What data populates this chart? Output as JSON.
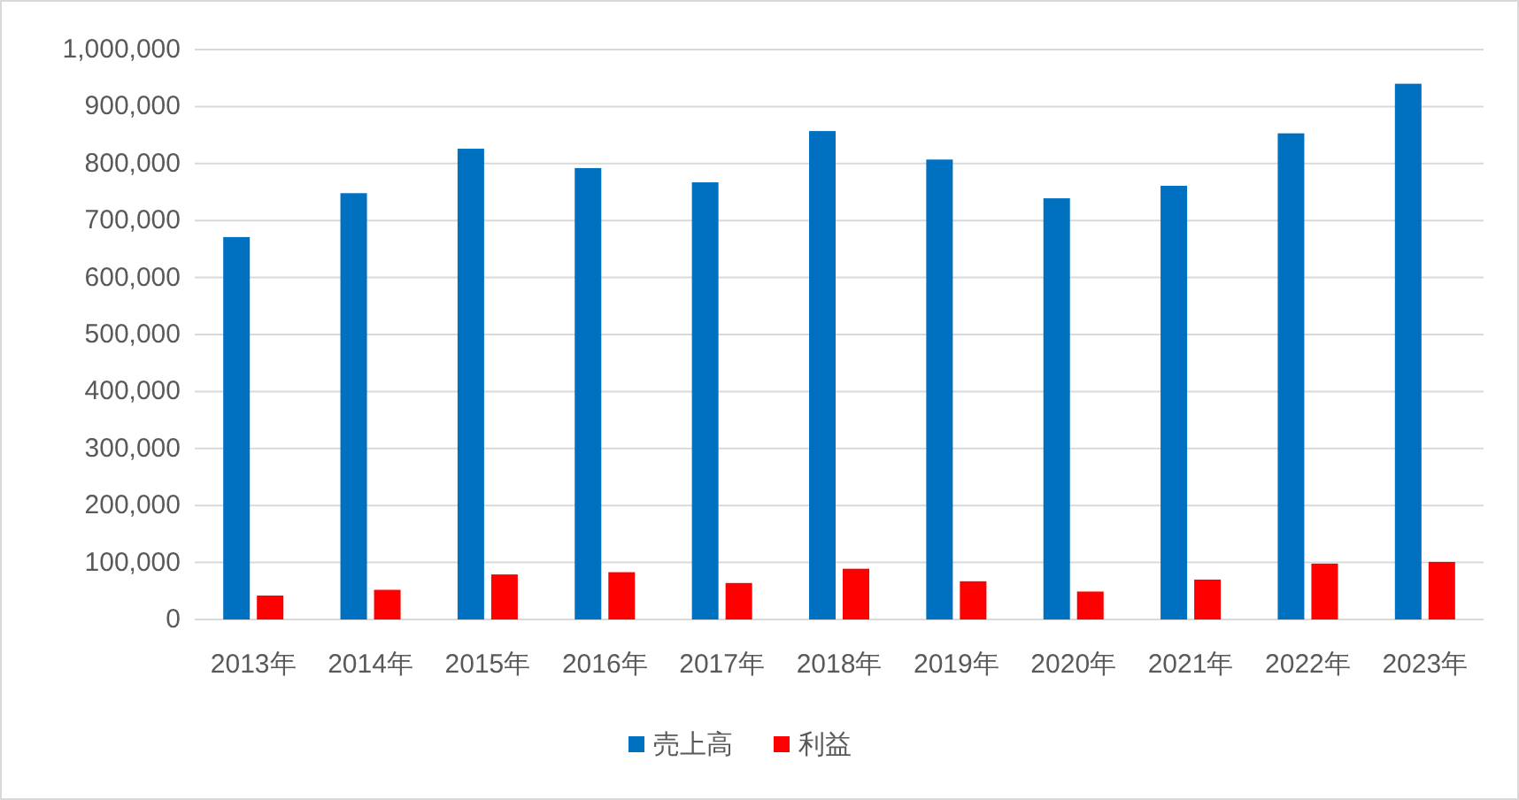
{
  "chart_data": {
    "type": "bar",
    "categories": [
      "2013年",
      "2014年",
      "2015年",
      "2016年",
      "2017年",
      "2018年",
      "2019年",
      "2020年",
      "2021年",
      "2022年",
      "2023年"
    ],
    "series": [
      {
        "name": "売上高",
        "color": "#0070c0",
        "values": [
          671000,
          748000,
          826000,
          792000,
          767000,
          857000,
          807000,
          739000,
          761000,
          853000,
          940000
        ]
      },
      {
        "name": "利益",
        "color": "#ff0000",
        "values": [
          42000,
          52000,
          79000,
          83000,
          64000,
          89000,
          67000,
          49000,
          70000,
          98000,
          101000
        ]
      }
    ],
    "ylim": [
      0,
      1000000
    ],
    "yticks": [
      {
        "value": 0,
        "label": "0"
      },
      {
        "value": 100000,
        "label": "100,000"
      },
      {
        "value": 200000,
        "label": "200,000"
      },
      {
        "value": 300000,
        "label": "300,000"
      },
      {
        "value": 400000,
        "label": "400,000"
      },
      {
        "value": 500000,
        "label": "500,000"
      },
      {
        "value": 600000,
        "label": "600,000"
      },
      {
        "value": 700000,
        "label": "700,000"
      },
      {
        "value": 800000,
        "label": "800,000"
      },
      {
        "value": 900000,
        "label": "900,000"
      },
      {
        "value": 1000000,
        "label": "1,000,000"
      }
    ],
    "grid": "y",
    "legend": "bottom"
  }
}
